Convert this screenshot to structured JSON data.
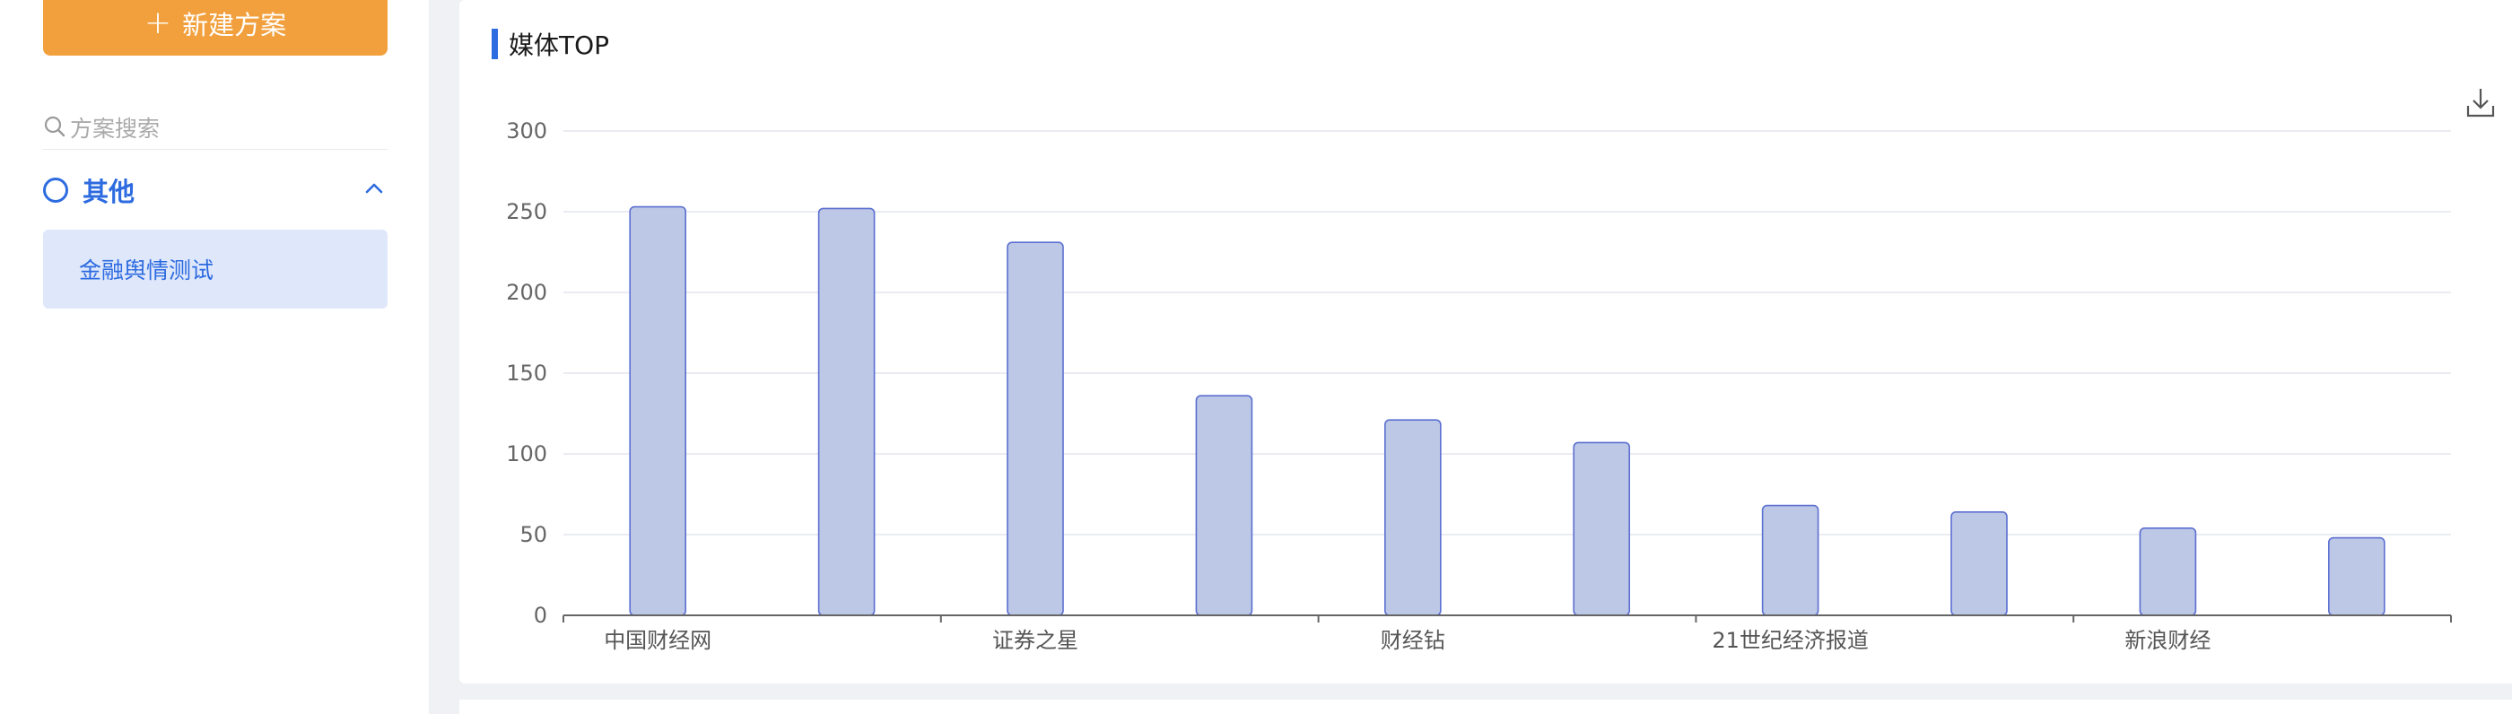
{
  "sidebar": {
    "new_plan_label": "新建方案",
    "search_placeholder": "方案搜索",
    "group": {
      "label": "其他",
      "expanded": true,
      "icon": "chevron-up-icon"
    },
    "plan_item": "金融舆情测试"
  },
  "card": {
    "title": "媒体TOP",
    "download_icon": "download-icon"
  },
  "colors": {
    "accent": "#2d6be0",
    "new_button": "#f2a03d",
    "bar_fill": "#bdc7e6",
    "bar_stroke": "#5b6fd0"
  },
  "chart_data": {
    "type": "bar",
    "title": "媒体TOP",
    "categories": [
      "中国财经网",
      "",
      "证券之星",
      "",
      "财经钻",
      "",
      "21世纪经济报道",
      "",
      "新浪财经",
      ""
    ],
    "values": [
      253,
      252,
      231,
      136,
      121,
      107,
      68,
      64,
      54,
      48
    ],
    "ylim": [
      0,
      300
    ],
    "yticks": [
      0,
      50,
      100,
      150,
      200,
      250,
      300
    ],
    "grid": true,
    "legend": "none"
  }
}
